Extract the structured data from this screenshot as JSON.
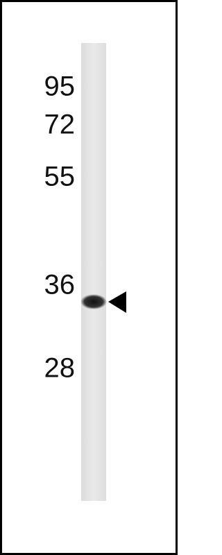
{
  "markers": [
    "95",
    "72",
    "55",
    "36",
    "28"
  ]
}
